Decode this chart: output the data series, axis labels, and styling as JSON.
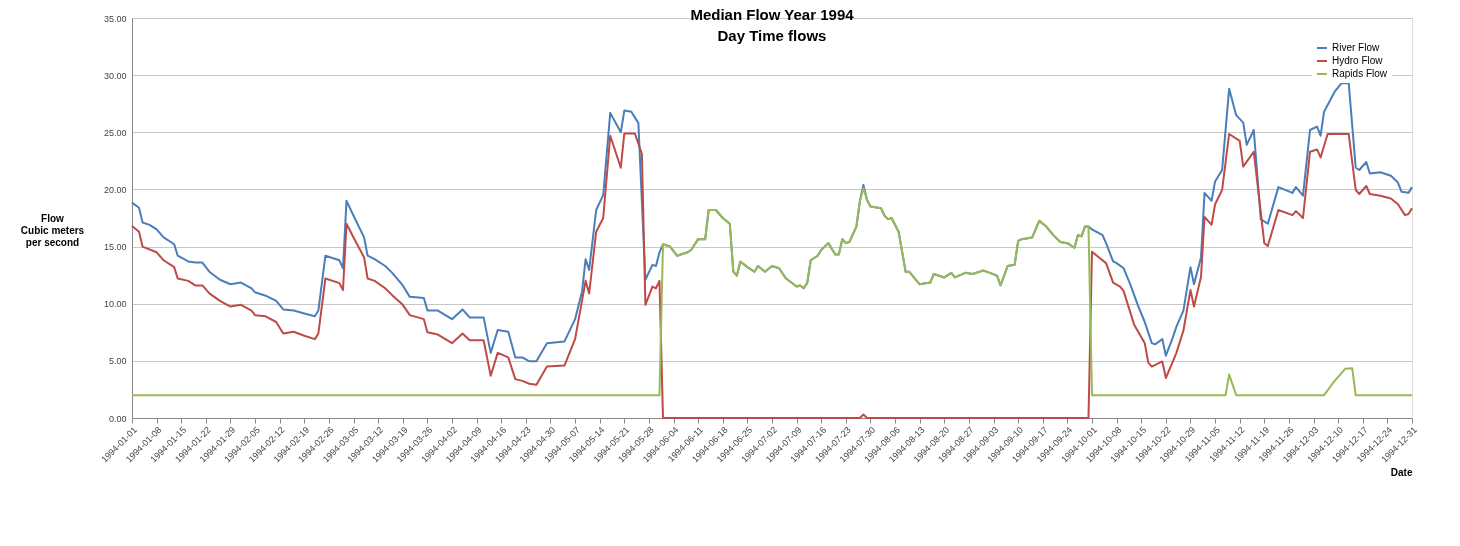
{
  "chart_data": {
    "type": "line",
    "title": "Median Flow Year 1994",
    "subtitle": "Day Time flows",
    "xlabel": "Date",
    "ylabel": "Flow\nCubic meters\nper second",
    "xlim": [
      "1994-01-01",
      "1994-12-31"
    ],
    "xticks": [
      "1994-01-01",
      "1994-01-08",
      "1994-01-15",
      "1994-01-22",
      "1994-01-29",
      "1994-02-05",
      "1994-02-12",
      "1994-02-19",
      "1994-02-26",
      "1994-03-05",
      "1994-03-12",
      "1994-03-19",
      "1994-03-26",
      "1994-04-02",
      "1994-04-09",
      "1994-04-16",
      "1994-04-23",
      "1994-04-30",
      "1994-05-07",
      "1994-05-14",
      "1994-05-21",
      "1994-05-28",
      "1994-06-04",
      "1994-06-11",
      "1994-06-18",
      "1994-06-25",
      "1994-07-02",
      "1994-07-09",
      "1994-07-16",
      "1994-07-23",
      "1994-07-30",
      "1994-08-06",
      "1994-08-13",
      "1994-08-20",
      "1994-08-27",
      "1994-09-03",
      "1994-09-10",
      "1994-09-17",
      "1994-09-24",
      "1994-10-01",
      "1994-10-08",
      "1994-10-15",
      "1994-10-22",
      "1994-10-29",
      "1994-11-05",
      "1994-11-12",
      "1994-11-19",
      "1994-11-26",
      "1994-12-03",
      "1994-12-10",
      "1994-12-17",
      "1994-12-24",
      "1994-12-31"
    ],
    "ylim": [
      0,
      35
    ],
    "yticks": [
      {
        "value": 0,
        "label": "0.00"
      },
      {
        "value": 5,
        "label": "5.00"
      },
      {
        "value": 10,
        "label": "10.00"
      },
      {
        "value": 15,
        "label": "15.00"
      },
      {
        "value": 20,
        "label": "20.00"
      },
      {
        "value": 25,
        "label": "25.00"
      },
      {
        "value": 30,
        "label": "30.00"
      },
      {
        "value": 35,
        "label": "35.00"
      }
    ],
    "grid": "y",
    "legend": "top right",
    "marker": "none",
    "line_style": "solid",
    "series": [
      {
        "name": "River Flow",
        "color": "#4a7ebb",
        "x": [
          "1994-01-01",
          "1994-01-03",
          "1994-01-04",
          "1994-01-06",
          "1994-01-08",
          "1994-01-10",
          "1994-01-13",
          "1994-01-14",
          "1994-01-17",
          "1994-01-19",
          "1994-01-21",
          "1994-01-23",
          "1994-01-26",
          "1994-01-29",
          "1994-02-01",
          "1994-02-04",
          "1994-02-05",
          "1994-02-08",
          "1994-02-11",
          "1994-02-13",
          "1994-02-16",
          "1994-02-19",
          "1994-02-22",
          "1994-02-23",
          "1994-02-25",
          "1994-03-01",
          "1994-03-02",
          "1994-03-03",
          "1994-03-05",
          "1994-03-08",
          "1994-03-09",
          "1994-03-11",
          "1994-03-14",
          "1994-03-16",
          "1994-03-19",
          "1994-03-21",
          "1994-03-25",
          "1994-03-26",
          "1994-03-29",
          "1994-04-02",
          "1994-04-05",
          "1994-04-07",
          "1994-04-11",
          "1994-04-13",
          "1994-04-15",
          "1994-04-18",
          "1994-04-20",
          "1994-04-22",
          "1994-04-24",
          "1994-04-26",
          "1994-04-29",
          "1994-05-04",
          "1994-05-07",
          "1994-05-09",
          "1994-05-10",
          "1994-05-11",
          "1994-05-13",
          "1994-05-15",
          "1994-05-17",
          "1994-05-20",
          "1994-05-21",
          "1994-05-23",
          "1994-05-25",
          "1994-05-27",
          "1994-05-29",
          "1994-05-30",
          "1994-05-31",
          "1994-06-01",
          "1994-06-03",
          "1994-06-05",
          "1994-06-08",
          "1994-06-09",
          "1994-06-11",
          "1994-06-13",
          "1994-06-14",
          "1994-06-16",
          "1994-06-18",
          "1994-06-20",
          "1994-06-21",
          "1994-06-22",
          "1994-06-23",
          "1994-06-25",
          "1994-06-27",
          "1994-06-28",
          "1994-06-30",
          "1994-07-02",
          "1994-07-04",
          "1994-07-06",
          "1994-07-09",
          "1994-07-10",
          "1994-07-11",
          "1994-07-12",
          "1994-07-13",
          "1994-07-15",
          "1994-07-16",
          "1994-07-18",
          "1994-07-20",
          "1994-07-21",
          "1994-07-22",
          "1994-07-23",
          "1994-07-24",
          "1994-07-26",
          "1994-07-27",
          "1994-07-28",
          "1994-07-29",
          "1994-07-30",
          "1994-08-02",
          "1994-08-03",
          "1994-08-04",
          "1994-08-05",
          "1994-08-07",
          "1994-08-09",
          "1994-08-10",
          "1994-08-13",
          "1994-08-16",
          "1994-08-17",
          "1994-08-20",
          "1994-08-22",
          "1994-08-23",
          "1994-08-26",
          "1994-08-28",
          "1994-08-30",
          "1994-08-31",
          "1994-09-02",
          "1994-09-04",
          "1994-09-05",
          "1994-09-07",
          "1994-09-09",
          "1994-09-10",
          "1994-09-11",
          "1994-09-14",
          "1994-09-16",
          "1994-09-18",
          "1994-09-20",
          "1994-09-22",
          "1994-09-24",
          "1994-09-26",
          "1994-09-27",
          "1994-09-28",
          "1994-09-29",
          "1994-09-30",
          "1994-10-01",
          "1994-10-04",
          "1994-10-05",
          "1994-10-07",
          "1994-10-08",
          "1994-10-10",
          "1994-10-12",
          "1994-10-14",
          "1994-10-16",
          "1994-10-18",
          "1994-10-19",
          "1994-10-21",
          "1994-10-22",
          "1994-10-24",
          "1994-10-25",
          "1994-10-27",
          "1994-10-29",
          "1994-10-30",
          "1994-11-01",
          "1994-11-02",
          "1994-11-04",
          "1994-11-05",
          "1994-11-07",
          "1994-11-09",
          "1994-11-11",
          "1994-11-13",
          "1994-11-14",
          "1994-11-16",
          "1994-11-18",
          "1994-11-20",
          "1994-11-23",
          "1994-11-27",
          "1994-11-28",
          "1994-11-30",
          "1994-12-02",
          "1994-12-04",
          "1994-12-05",
          "1994-12-06",
          "1994-12-09",
          "1994-12-11",
          "1994-12-13",
          "1994-12-15",
          "1994-12-16",
          "1994-12-18",
          "1994-12-19",
          "1994-12-22",
          "1994-12-25",
          "1994-12-27",
          "1994-12-28",
          "1994-12-30",
          "1994-12-31"
        ],
        "values": [
          18.85,
          18.4,
          17.1,
          16.9,
          16.5,
          15.8,
          15.2,
          14.2,
          13.7,
          13.6,
          13.6,
          12.8,
          12.1,
          11.7,
          11.85,
          11.35,
          11.0,
          10.7,
          10.25,
          9.5,
          9.4,
          9.15,
          8.9,
          9.4,
          14.2,
          13.8,
          13.1,
          19.0,
          17.7,
          15.8,
          14.2,
          13.9,
          13.3,
          12.7,
          11.6,
          10.6,
          10.5,
          9.4,
          9.4,
          8.65,
          9.5,
          8.8,
          8.8,
          5.7,
          7.7,
          7.55,
          5.3,
          5.3,
          4.96,
          4.96,
          6.55,
          6.7,
          8.65,
          11.1,
          13.9,
          12.95,
          18.2,
          19.5,
          26.7,
          25.0,
          26.9,
          26.8,
          25.8,
          12.1,
          13.4,
          13.3,
          14.5,
          15.2,
          15.0,
          14.2,
          14.5,
          14.7,
          15.65,
          15.65,
          18.2,
          18.2,
          17.5,
          17.0,
          12.8,
          12.45,
          13.7,
          13.2,
          12.8,
          13.3,
          12.8,
          13.3,
          13.1,
          12.2,
          11.5,
          11.6,
          11.35,
          11.8,
          13.8,
          14.2,
          14.7,
          15.3,
          14.3,
          14.3,
          15.65,
          15.3,
          15.4,
          16.75,
          19.0,
          20.4,
          19.1,
          18.5,
          18.35,
          17.7,
          17.4,
          17.5,
          16.3,
          12.8,
          12.8,
          11.7,
          11.85,
          12.6,
          12.3,
          12.7,
          12.3,
          12.7,
          12.6,
          12.8,
          12.9,
          12.7,
          12.45,
          11.6,
          13.3,
          13.4,
          15.5,
          15.65,
          15.8,
          17.25,
          16.75,
          16.0,
          15.4,
          15.3,
          14.9,
          16.0,
          15.9,
          16.75,
          16.75,
          16.5,
          16.0,
          15.3,
          13.7,
          13.55,
          13.1,
          11.6,
          9.9,
          8.4,
          6.55,
          6.45,
          6.9,
          5.45,
          7.05,
          8.0,
          9.4,
          13.2,
          11.7,
          14.05,
          19.7,
          19.0,
          20.7,
          21.7,
          28.8,
          26.5,
          25.85,
          23.9,
          25.2,
          17.4,
          17.0,
          20.2,
          19.7,
          20.2,
          19.45,
          25.2,
          25.5,
          24.7,
          26.8,
          28.55,
          29.3,
          29.3,
          21.9,
          21.7,
          22.4,
          21.4,
          21.5,
          21.2,
          20.6,
          19.8,
          19.7,
          20.2
        ]
      },
      {
        "name": "Hydro Flow",
        "color": "#be4b48",
        "x": [
          "1994-01-01",
          "1994-01-03",
          "1994-01-04",
          "1994-01-08",
          "1994-01-10",
          "1994-01-13",
          "1994-01-14",
          "1994-01-17",
          "1994-01-19",
          "1994-01-21",
          "1994-01-23",
          "1994-01-26",
          "1994-01-29",
          "1994-02-01",
          "1994-02-04",
          "1994-02-05",
          "1994-02-08",
          "1994-02-11",
          "1994-02-13",
          "1994-02-16",
          "1994-02-19",
          "1994-02-22",
          "1994-02-23",
          "1994-02-25",
          "1994-03-01",
          "1994-03-02",
          "1994-03-03",
          "1994-03-05",
          "1994-03-08",
          "1994-03-09",
          "1994-03-11",
          "1994-03-14",
          "1994-03-16",
          "1994-03-19",
          "1994-03-21",
          "1994-03-25",
          "1994-03-26",
          "1994-03-29",
          "1994-04-02",
          "1994-04-05",
          "1994-04-07",
          "1994-04-11",
          "1994-04-13",
          "1994-04-15",
          "1994-04-18",
          "1994-04-20",
          "1994-04-22",
          "1994-04-24",
          "1994-04-26",
          "1994-04-29",
          "1994-05-04",
          "1994-05-07",
          "1994-05-10",
          "1994-05-11",
          "1994-05-13",
          "1994-05-15",
          "1994-05-17",
          "1994-05-20",
          "1994-05-21",
          "1994-05-24",
          "1994-05-26",
          "1994-05-27",
          "1994-05-29",
          "1994-05-30",
          "1994-05-31",
          "1994-06-01",
          "1994-07-27",
          "1994-07-28",
          "1994-07-29",
          "1994-09-30",
          "1994-10-01",
          "1994-10-03",
          "1994-10-05",
          "1994-10-07",
          "1994-10-09",
          "1994-10-10",
          "1994-10-13",
          "1994-10-16",
          "1994-10-17",
          "1994-10-18",
          "1994-10-21",
          "1994-10-22",
          "1994-10-24",
          "1994-10-25",
          "1994-10-27",
          "1994-10-29",
          "1994-10-30",
          "1994-11-01",
          "1994-11-02",
          "1994-11-04",
          "1994-11-05",
          "1994-11-07",
          "1994-11-09",
          "1994-11-12",
          "1994-11-13",
          "1994-11-16",
          "1994-11-19",
          "1994-11-20",
          "1994-11-23",
          "1994-11-27",
          "1994-11-28",
          "1994-11-30",
          "1994-12-02",
          "1994-12-04",
          "1994-12-05",
          "1994-12-07",
          "1994-12-13",
          "1994-12-15",
          "1994-12-16",
          "1994-12-18",
          "1994-12-19",
          "1994-12-22",
          "1994-12-25",
          "1994-12-27",
          "1994-12-29",
          "1994-12-30",
          "1994-12-31"
        ],
        "values": [
          16.8,
          16.3,
          15.0,
          14.5,
          13.8,
          13.2,
          12.2,
          12.0,
          11.6,
          11.6,
          10.9,
          10.25,
          9.75,
          9.9,
          9.4,
          9.0,
          8.9,
          8.4,
          7.4,
          7.55,
          7.2,
          6.9,
          7.4,
          12.2,
          11.8,
          11.2,
          17.0,
          15.8,
          14.05,
          12.2,
          12.0,
          11.35,
          10.75,
          9.9,
          9.0,
          8.65,
          7.5,
          7.3,
          6.55,
          7.4,
          6.8,
          6.8,
          3.7,
          5.7,
          5.3,
          3.4,
          3.25,
          3.0,
          2.9,
          4.5,
          4.6,
          6.9,
          12.0,
          10.9,
          16.3,
          17.5,
          24.7,
          21.9,
          24.9,
          24.9,
          23.1,
          9.9,
          11.5,
          11.35,
          12.0,
          0,
          0,
          0.3,
          0,
          0,
          14.55,
          14.05,
          13.55,
          11.85,
          11.5,
          11.1,
          8.15,
          6.55,
          4.85,
          4.5,
          4.95,
          3.5,
          4.95,
          5.7,
          7.65,
          11.2,
          9.75,
          12.35,
          17.6,
          16.9,
          18.7,
          19.95,
          24.85,
          24.25,
          22.0,
          23.3,
          15.3,
          15.05,
          18.2,
          17.75,
          18.1,
          17.5,
          23.3,
          23.5,
          22.8,
          24.85,
          24.85,
          19.95,
          19.6,
          20.3,
          19.6,
          19.45,
          19.2,
          18.7,
          17.75,
          17.85,
          18.35
        ]
      },
      {
        "name": "Rapids Flow",
        "color": "#98b954",
        "x": [
          "1994-01-01",
          "1994-05-31",
          "1994-06-01",
          "1994-06-03",
          "1994-06-05",
          "1994-06-08",
          "1994-06-09",
          "1994-06-11",
          "1994-06-13",
          "1994-06-14",
          "1994-06-16",
          "1994-06-18",
          "1994-06-20",
          "1994-06-21",
          "1994-06-22",
          "1994-06-23",
          "1994-06-25",
          "1994-06-27",
          "1994-06-28",
          "1994-06-30",
          "1994-07-02",
          "1994-07-04",
          "1994-07-06",
          "1994-07-09",
          "1994-07-10",
          "1994-07-11",
          "1994-07-12",
          "1994-07-13",
          "1994-07-15",
          "1994-07-16",
          "1994-07-18",
          "1994-07-20",
          "1994-07-21",
          "1994-07-22",
          "1994-07-23",
          "1994-07-24",
          "1994-07-26",
          "1994-07-27",
          "1994-07-28",
          "1994-07-29",
          "1994-07-30",
          "1994-08-02",
          "1994-08-03",
          "1994-08-04",
          "1994-08-05",
          "1994-08-07",
          "1994-08-09",
          "1994-08-10",
          "1994-08-13",
          "1994-08-16",
          "1994-08-17",
          "1994-08-20",
          "1994-08-22",
          "1994-08-23",
          "1994-08-26",
          "1994-08-28",
          "1994-08-30",
          "1994-08-31",
          "1994-09-02",
          "1994-09-04",
          "1994-09-05",
          "1994-09-07",
          "1994-09-09",
          "1994-09-10",
          "1994-09-11",
          "1994-09-14",
          "1994-09-16",
          "1994-09-18",
          "1994-09-20",
          "1994-09-22",
          "1994-09-24",
          "1994-09-26",
          "1994-09-27",
          "1994-09-28",
          "1994-09-29",
          "1994-09-30",
          "1994-10-01",
          "1994-11-08",
          "1994-11-09",
          "1994-11-11",
          "1994-12-06",
          "1994-12-09",
          "1994-12-10",
          "1994-12-12",
          "1994-12-14",
          "1994-12-15",
          "1994-12-31"
        ],
        "values": [
          2.0,
          2.0,
          15.2,
          15.0,
          14.2,
          14.5,
          14.7,
          15.65,
          15.65,
          18.2,
          18.2,
          17.5,
          17.0,
          12.8,
          12.45,
          13.7,
          13.2,
          12.8,
          13.3,
          12.8,
          13.3,
          13.1,
          12.2,
          11.5,
          11.6,
          11.35,
          11.8,
          13.8,
          14.2,
          14.7,
          15.3,
          14.3,
          14.3,
          15.65,
          15.3,
          15.4,
          16.75,
          19.0,
          20.1,
          19.1,
          18.5,
          18.35,
          17.7,
          17.4,
          17.5,
          16.3,
          12.8,
          12.8,
          11.7,
          11.85,
          12.6,
          12.3,
          12.7,
          12.3,
          12.7,
          12.6,
          12.8,
          12.9,
          12.7,
          12.45,
          11.6,
          13.3,
          13.4,
          15.5,
          15.65,
          15.8,
          17.25,
          16.75,
          16.0,
          15.4,
          15.3,
          14.9,
          16.0,
          15.9,
          16.75,
          16.75,
          2.0,
          2.0,
          3.8,
          2.0,
          2.0,
          3.25,
          3.6,
          4.3,
          4.35,
          2.0,
          2.0
        ]
      }
    ]
  }
}
